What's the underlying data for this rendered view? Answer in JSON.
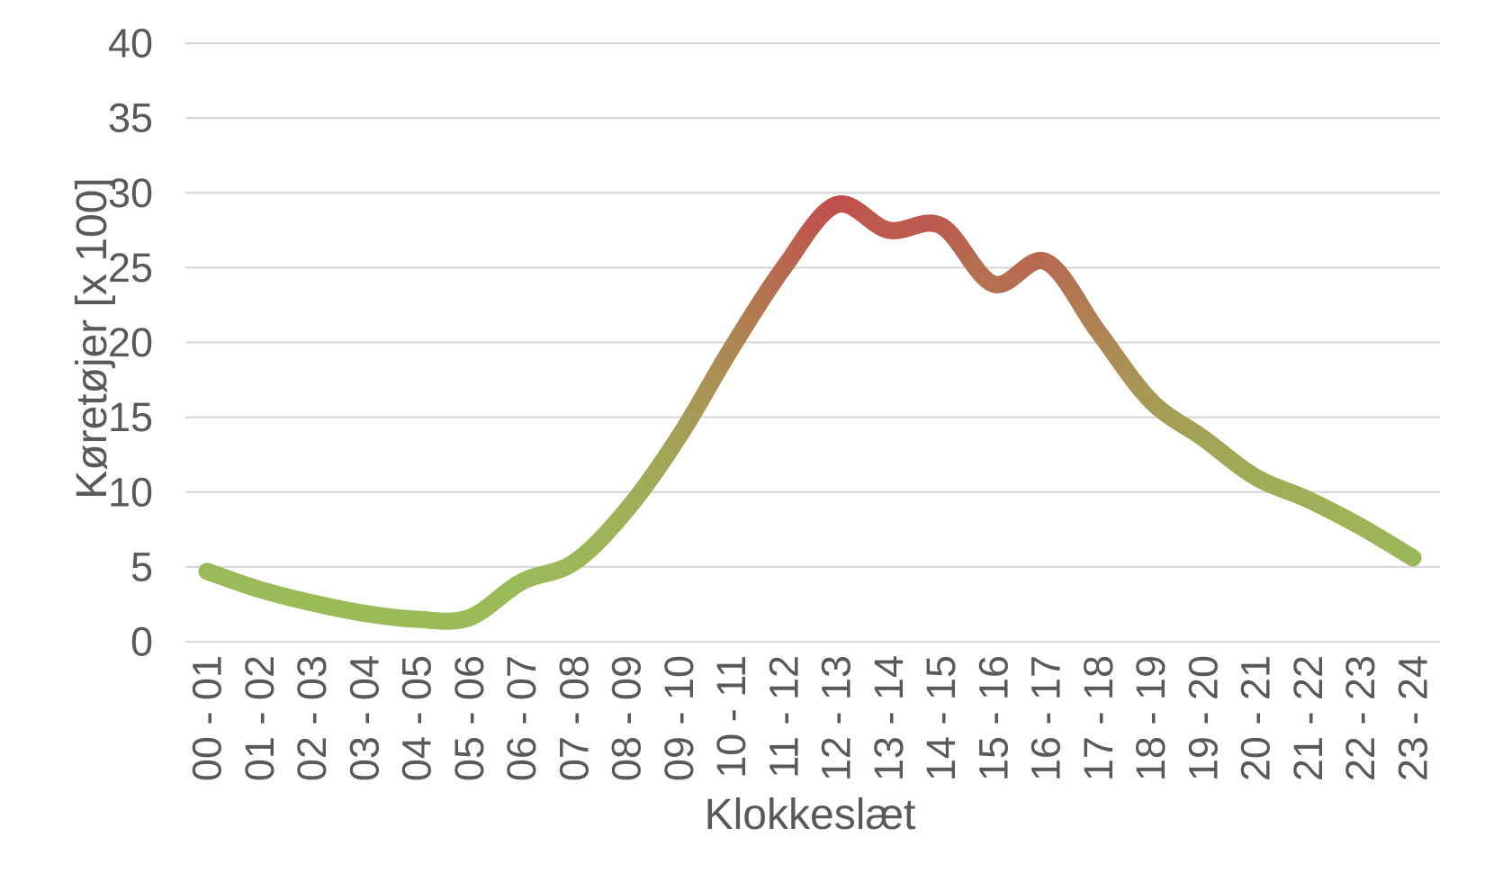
{
  "chart_data": {
    "type": "line",
    "title": "",
    "xlabel": "Klokkeslæt",
    "ylabel": "Køretøjer [x 100]",
    "categories": [
      "00 - 01",
      "01 - 02",
      "02 - 03",
      "03 - 04",
      "04 - 05",
      "05 - 06",
      "06 - 07",
      "07 - 08",
      "08 - 09",
      "09 - 10",
      "10 - 11",
      "11 - 12",
      "12 - 13",
      "13 - 14",
      "14 - 15",
      "15 - 16",
      "16 - 17",
      "17 - 18",
      "18 - 19",
      "19 - 20",
      "20 - 21",
      "21 - 22",
      "22 - 23",
      "23 - 24"
    ],
    "values": [
      4.7,
      3.5,
      2.6,
      1.9,
      1.5,
      1.6,
      4.0,
      5.3,
      8.8,
      13.7,
      19.6,
      25.0,
      29.2,
      27.5,
      27.8,
      23.9,
      25.4,
      20.7,
      16.1,
      13.6,
      11.0,
      9.5,
      7.7,
      5.6
    ],
    "ylim": [
      0,
      40
    ],
    "yticks": [
      0,
      5,
      10,
      15,
      20,
      25,
      30,
      35,
      40
    ],
    "grid": "horizontal-only",
    "legend": "none",
    "smooth": true,
    "line": {
      "width": 19,
      "gradient_by_value": true,
      "low_color": "#9BBB59",
      "high_color": "#C0504D",
      "gamma": 1.75
    }
  },
  "styles": {
    "background": "#FFFFFF",
    "grid_color": "#D9D9D9",
    "text_color": "#595959"
  }
}
